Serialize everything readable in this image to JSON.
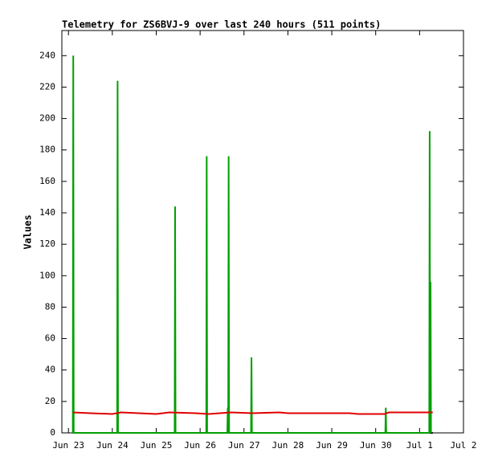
{
  "chart_data": {
    "type": "line",
    "title": "Telemetry for ZS6BVJ-9 over last 240 hours (511 points)",
    "y_label": "Values",
    "xlim": [
      22.85,
      32
    ],
    "xticks": [
      {
        "value": 23,
        "label": "Jun 23"
      },
      {
        "value": 24,
        "label": "Jun 24"
      },
      {
        "value": 25,
        "label": "Jun 25"
      },
      {
        "value": 26,
        "label": "Jun 26"
      },
      {
        "value": 27,
        "label": "Jun 27"
      },
      {
        "value": 28,
        "label": "Jun 28"
      },
      {
        "value": 29,
        "label": "Jun 29"
      },
      {
        "value": 30,
        "label": "Jun 30"
      },
      {
        "value": 31,
        "label": "Jul 1"
      },
      {
        "value": 32,
        "label": "Jul 2"
      }
    ],
    "ylim": [
      0,
      256
    ],
    "yticks": [
      0,
      20,
      40,
      60,
      80,
      100,
      120,
      140,
      160,
      180,
      200,
      220,
      240
    ],
    "series": [
      {
        "color": "#000000",
        "x": [
          23.1,
          31.3
        ],
        "values": [
          0,
          0
        ]
      },
      {
        "color": "#00a000",
        "x": [
          23.1,
          23.11,
          23.12,
          24.11,
          24.12,
          24.13,
          25.42,
          25.43,
          25.44,
          26.14,
          26.15,
          26.16,
          26.62,
          26.63,
          26.64,
          26.65,
          26.66,
          27.16,
          27.17,
          27.18,
          30.22,
          30.23,
          30.24,
          31.22,
          31.23,
          31.24,
          31.25,
          31.26
        ],
        "values": [
          0,
          240,
          0,
          0,
          224,
          0,
          0,
          144,
          0,
          0,
          176,
          0,
          0,
          16,
          0,
          176,
          0,
          0,
          48,
          0,
          0,
          16,
          0,
          0,
          192,
          0,
          96,
          0
        ]
      },
      {
        "color": "#e00000",
        "x": [
          23.1,
          23.5,
          24.0,
          24.2,
          24.6,
          25.0,
          25.3,
          25.9,
          26.2,
          26.7,
          27.2,
          27.8,
          28.0,
          28.8,
          29.4,
          29.6,
          30.2,
          30.3,
          31.3
        ],
        "values": [
          13,
          12.5,
          12,
          13,
          12.5,
          12,
          13,
          12.5,
          12,
          13,
          12.5,
          13,
          12.5,
          12.5,
          12.5,
          12,
          12,
          13,
          13
        ]
      }
    ]
  }
}
